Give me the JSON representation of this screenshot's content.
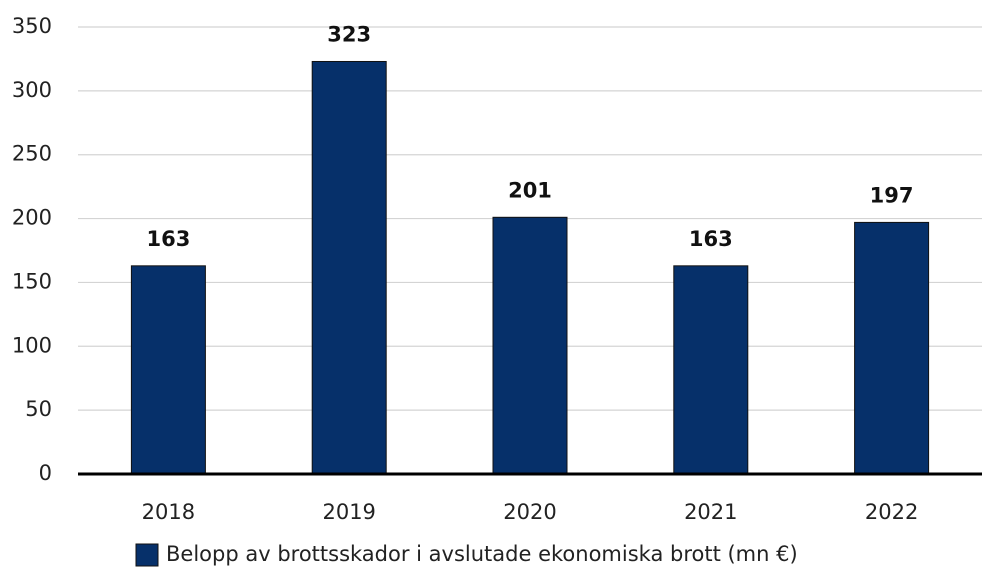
{
  "chart_data": {
    "type": "bar",
    "categories": [
      "2018",
      "2019",
      "2020",
      "2021",
      "2022"
    ],
    "series": [
      {
        "name": "Belopp av brottsskador i avslutade ekonomiska brott (mn €)",
        "color": "#06306a",
        "values": [
          163,
          323,
          201,
          163,
          197
        ]
      }
    ],
    "ylim": [
      0,
      350
    ],
    "yticks": [
      0,
      50,
      100,
      150,
      200,
      250,
      300,
      350
    ],
    "grid": true,
    "legend": "bottom"
  }
}
